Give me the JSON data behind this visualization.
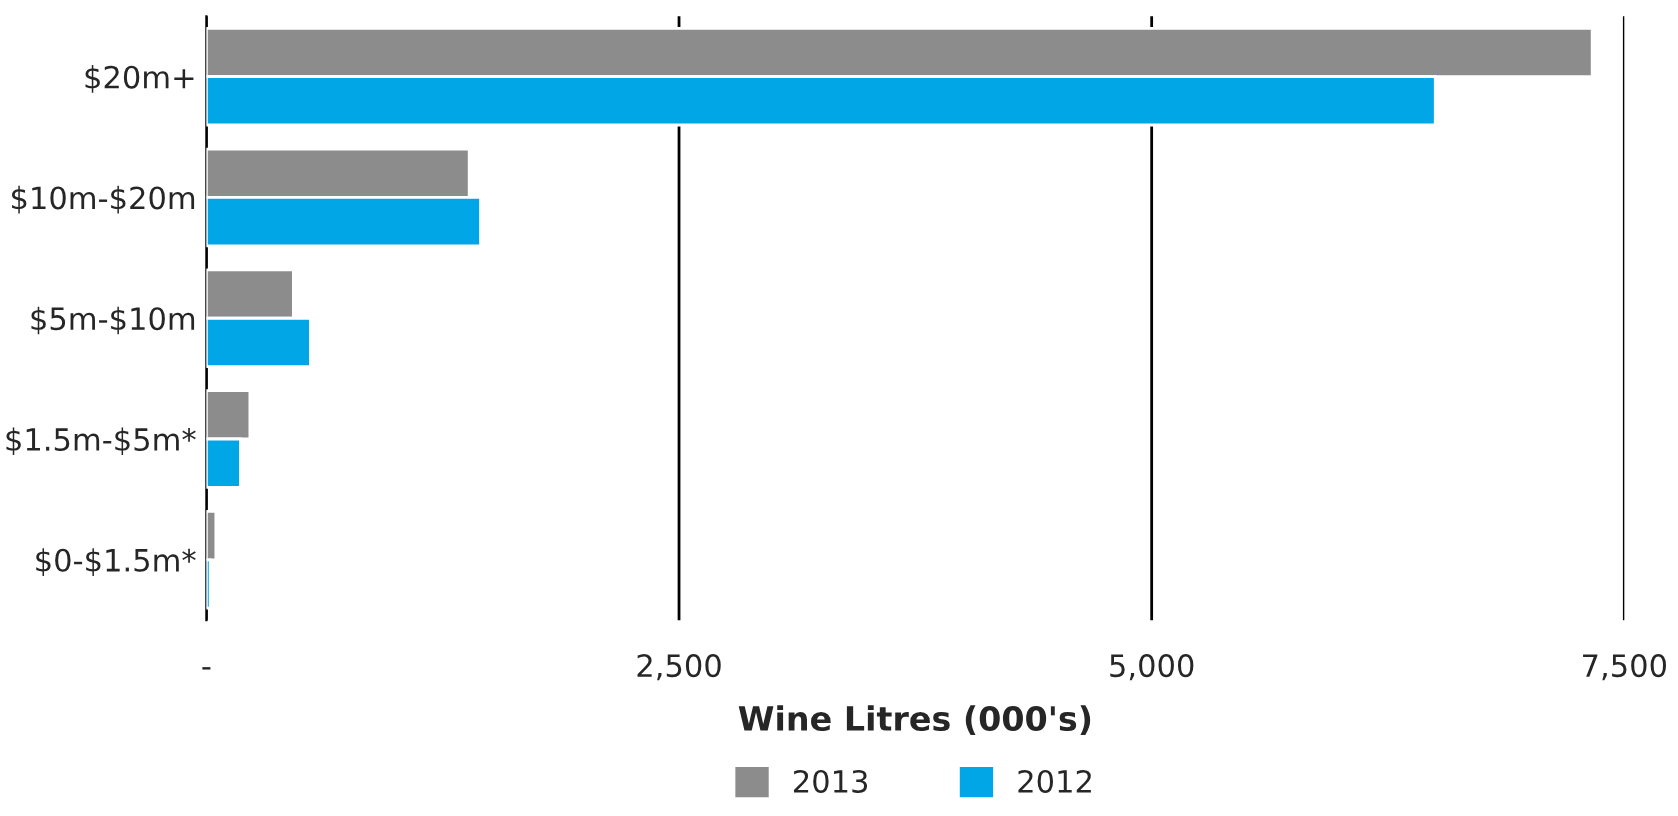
{
  "chart_data": {
    "type": "bar",
    "orientation": "horizontal",
    "xlabel": "Wine Litres (000's)",
    "categories": [
      "$20m+",
      "$10m-$20m",
      "$5m-$10m",
      "$1.5m-$5m*",
      "$0-$1.5m*"
    ],
    "series": [
      {
        "name": "2013",
        "color": "#8c8c8c",
        "values": [
          7330,
          1390,
          460,
          230,
          50
        ]
      },
      {
        "name": "2012",
        "color": "#00a6e6",
        "values": [
          6500,
          1450,
          550,
          180,
          20
        ]
      }
    ],
    "xlim": [
      0,
      7500
    ],
    "xticks": [
      {
        "value": 0,
        "label": "-"
      },
      {
        "value": 2500,
        "label": "2,500"
      },
      {
        "value": 5000,
        "label": "5,000"
      },
      {
        "value": 7500,
        "label": "7,500"
      }
    ],
    "grid": "x",
    "legend": "bottom"
  }
}
